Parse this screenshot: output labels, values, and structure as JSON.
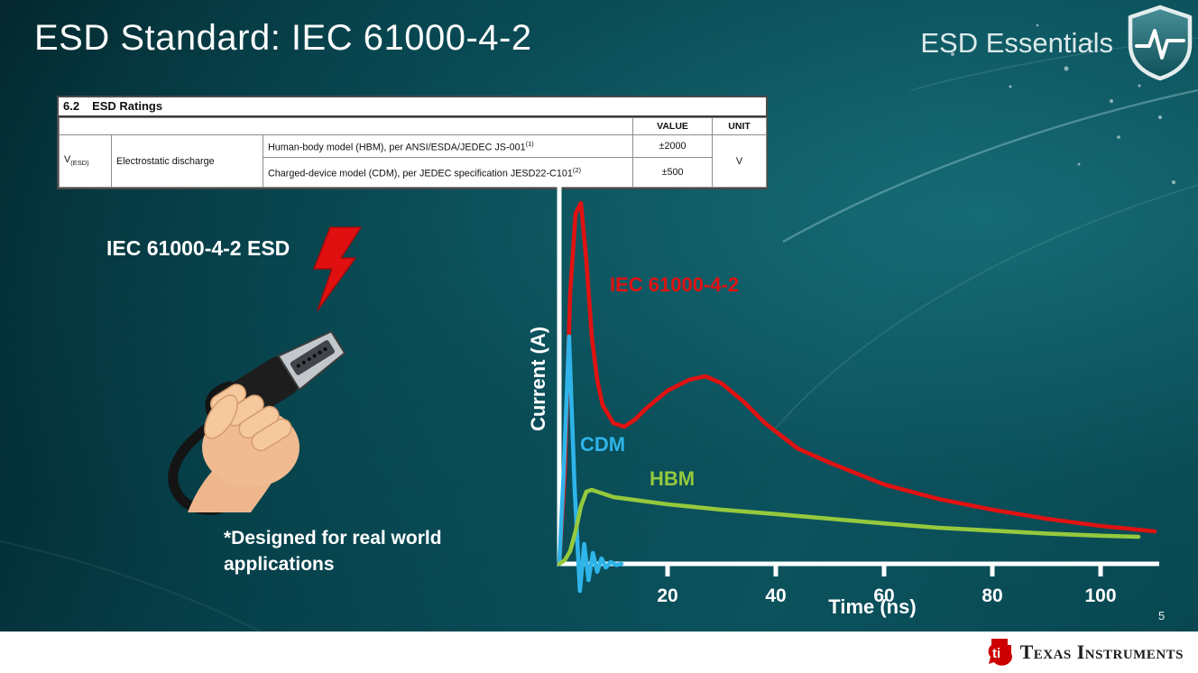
{
  "slide": {
    "title": "ESD Standard: IEC 61000-4-2",
    "brand_label": "ESD Essentials",
    "page_number": "5"
  },
  "ratings_table": {
    "section_number": "6.2",
    "section_title": "ESD Ratings",
    "value_header": "VALUE",
    "unit_header": "UNIT",
    "symbol_base": "V",
    "symbol_sub": "(ESD)",
    "parameter": "Electrostatic discharge",
    "rows": [
      {
        "description": "Human-body model (HBM), per ANSI/ESDA/JEDEC JS-001",
        "sup": "(1)",
        "value": "±2000"
      },
      {
        "description": "Charged-device model (CDM), per JEDEC specification JESD22-C101",
        "sup": "(2)",
        "value": "±500"
      }
    ],
    "unit": "V"
  },
  "left_panel": {
    "illustration_label": "IEC 61000-4-2 ESD",
    "note": "*Designed for real world applications"
  },
  "footer": {
    "logo_text": "Texas Instruments"
  },
  "icons": {
    "shield": "shield-pulse-icon",
    "lightning": "lightning-bolt-icon",
    "ti_bug": "ti-logo-icon"
  },
  "chart_data": {
    "type": "line",
    "title": "",
    "xlabel": "Time (ns)",
    "ylabel": "Current (A)",
    "xlim": [
      0,
      110
    ],
    "ylim": [
      0,
      10.5
    ],
    "x_ticks": [
      20,
      40,
      60,
      80,
      100
    ],
    "grid": false,
    "legend": "inline-labels",
    "series": [
      {
        "name": "IEC 61000-4-2",
        "color": "#e01212",
        "x": [
          0,
          1,
          2,
          3,
          4,
          5,
          6,
          7,
          8,
          10,
          12,
          14,
          16,
          20,
          24,
          27,
          30,
          34,
          38,
          44,
          50,
          60,
          70,
          80,
          90,
          100,
          110
        ],
        "y": [
          0,
          2.5,
          7.5,
          9.7,
          10,
          8.4,
          6.3,
          5.1,
          4.4,
          3.9,
          3.8,
          4.0,
          4.3,
          4.8,
          5.1,
          5.2,
          5.0,
          4.5,
          3.9,
          3.2,
          2.8,
          2.2,
          1.8,
          1.5,
          1.25,
          1.05,
          0.9
        ]
      },
      {
        "name": "CDM",
        "color": "#2fb4e9",
        "x": [
          0,
          0.8,
          1.8,
          2.8,
          3.8,
          4.6,
          5.4,
          6.2,
          7.0,
          7.8,
          8.6,
          9.5,
          10.5,
          11.5
        ],
        "y": [
          0,
          2.5,
          6.3,
          2.2,
          -0.75,
          0.55,
          -0.45,
          0.3,
          -0.22,
          0.15,
          -0.1,
          0.05,
          -0.03,
          0
        ]
      },
      {
        "name": "HBM",
        "color": "#95c93d",
        "x": [
          0,
          1,
          2,
          3,
          4,
          5,
          6,
          8,
          10,
          15,
          20,
          30,
          40,
          50,
          60,
          70,
          80,
          90,
          100,
          107
        ],
        "y": [
          0,
          0.1,
          0.35,
          0.9,
          1.6,
          2.0,
          2.05,
          1.95,
          1.85,
          1.75,
          1.65,
          1.5,
          1.38,
          1.25,
          1.12,
          1.0,
          0.92,
          0.84,
          0.78,
          0.75
        ]
      }
    ]
  }
}
